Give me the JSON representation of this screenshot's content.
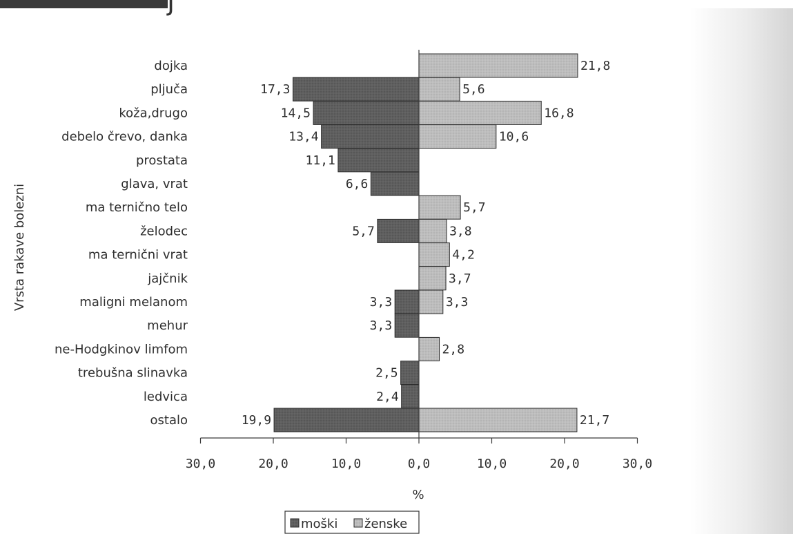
{
  "chart_data": {
    "type": "bar",
    "orientation": "horizontal-butterfly",
    "categories": [
      "dojka",
      "pljuča",
      "koža,drugo",
      "debelo črevo, danka",
      "prostata",
      "glava, vrat",
      "ma terničnо telo",
      "želodec",
      "ma ternični vrat",
      "jajčnik",
      "maligni melanom",
      "mehur",
      "ne-Hodgkinov limfom",
      "trebušna slinavka",
      "ledvica",
      "ostalo"
    ],
    "series": [
      {
        "name": "moški",
        "color": "#5a5a5a",
        "values": [
          null,
          17.3,
          14.5,
          13.4,
          11.1,
          6.6,
          null,
          5.7,
          null,
          null,
          3.3,
          3.3,
          null,
          2.5,
          2.4,
          19.9
        ],
        "labels": [
          "",
          "17,3",
          "14,5",
          "13,4",
          "11,1",
          "6,6",
          "",
          "5,7",
          "",
          "",
          "3,3",
          "3,3",
          "",
          "2,5",
          "2,4",
          "19,9"
        ]
      },
      {
        "name": "ženske",
        "color": "#b8b8b8",
        "values": [
          21.8,
          5.6,
          16.8,
          10.6,
          null,
          null,
          5.7,
          3.8,
          4.2,
          3.7,
          3.3,
          null,
          2.8,
          null,
          null,
          21.7
        ],
        "labels": [
          "21,8",
          "5,6",
          "16,8",
          "10,6",
          "",
          "",
          "5,7",
          "3,8",
          "4,2",
          "3,7",
          "3,3",
          "",
          "2,8",
          "",
          "",
          "21,7"
        ]
      }
    ],
    "xlim": [
      -30,
      30
    ],
    "xticks": [
      -30,
      -20,
      -10,
      0,
      10,
      20,
      30
    ],
    "xtick_labels": [
      "30,0",
      "20,0",
      "10,0",
      "0,0",
      "10,0",
      "20,0",
      "30,0"
    ],
    "xlabel": "%",
    "ylabel": "Vrsta rakave bolezni",
    "legend_position": "bottom-center",
    "grid": false
  },
  "header_fragment": "j"
}
